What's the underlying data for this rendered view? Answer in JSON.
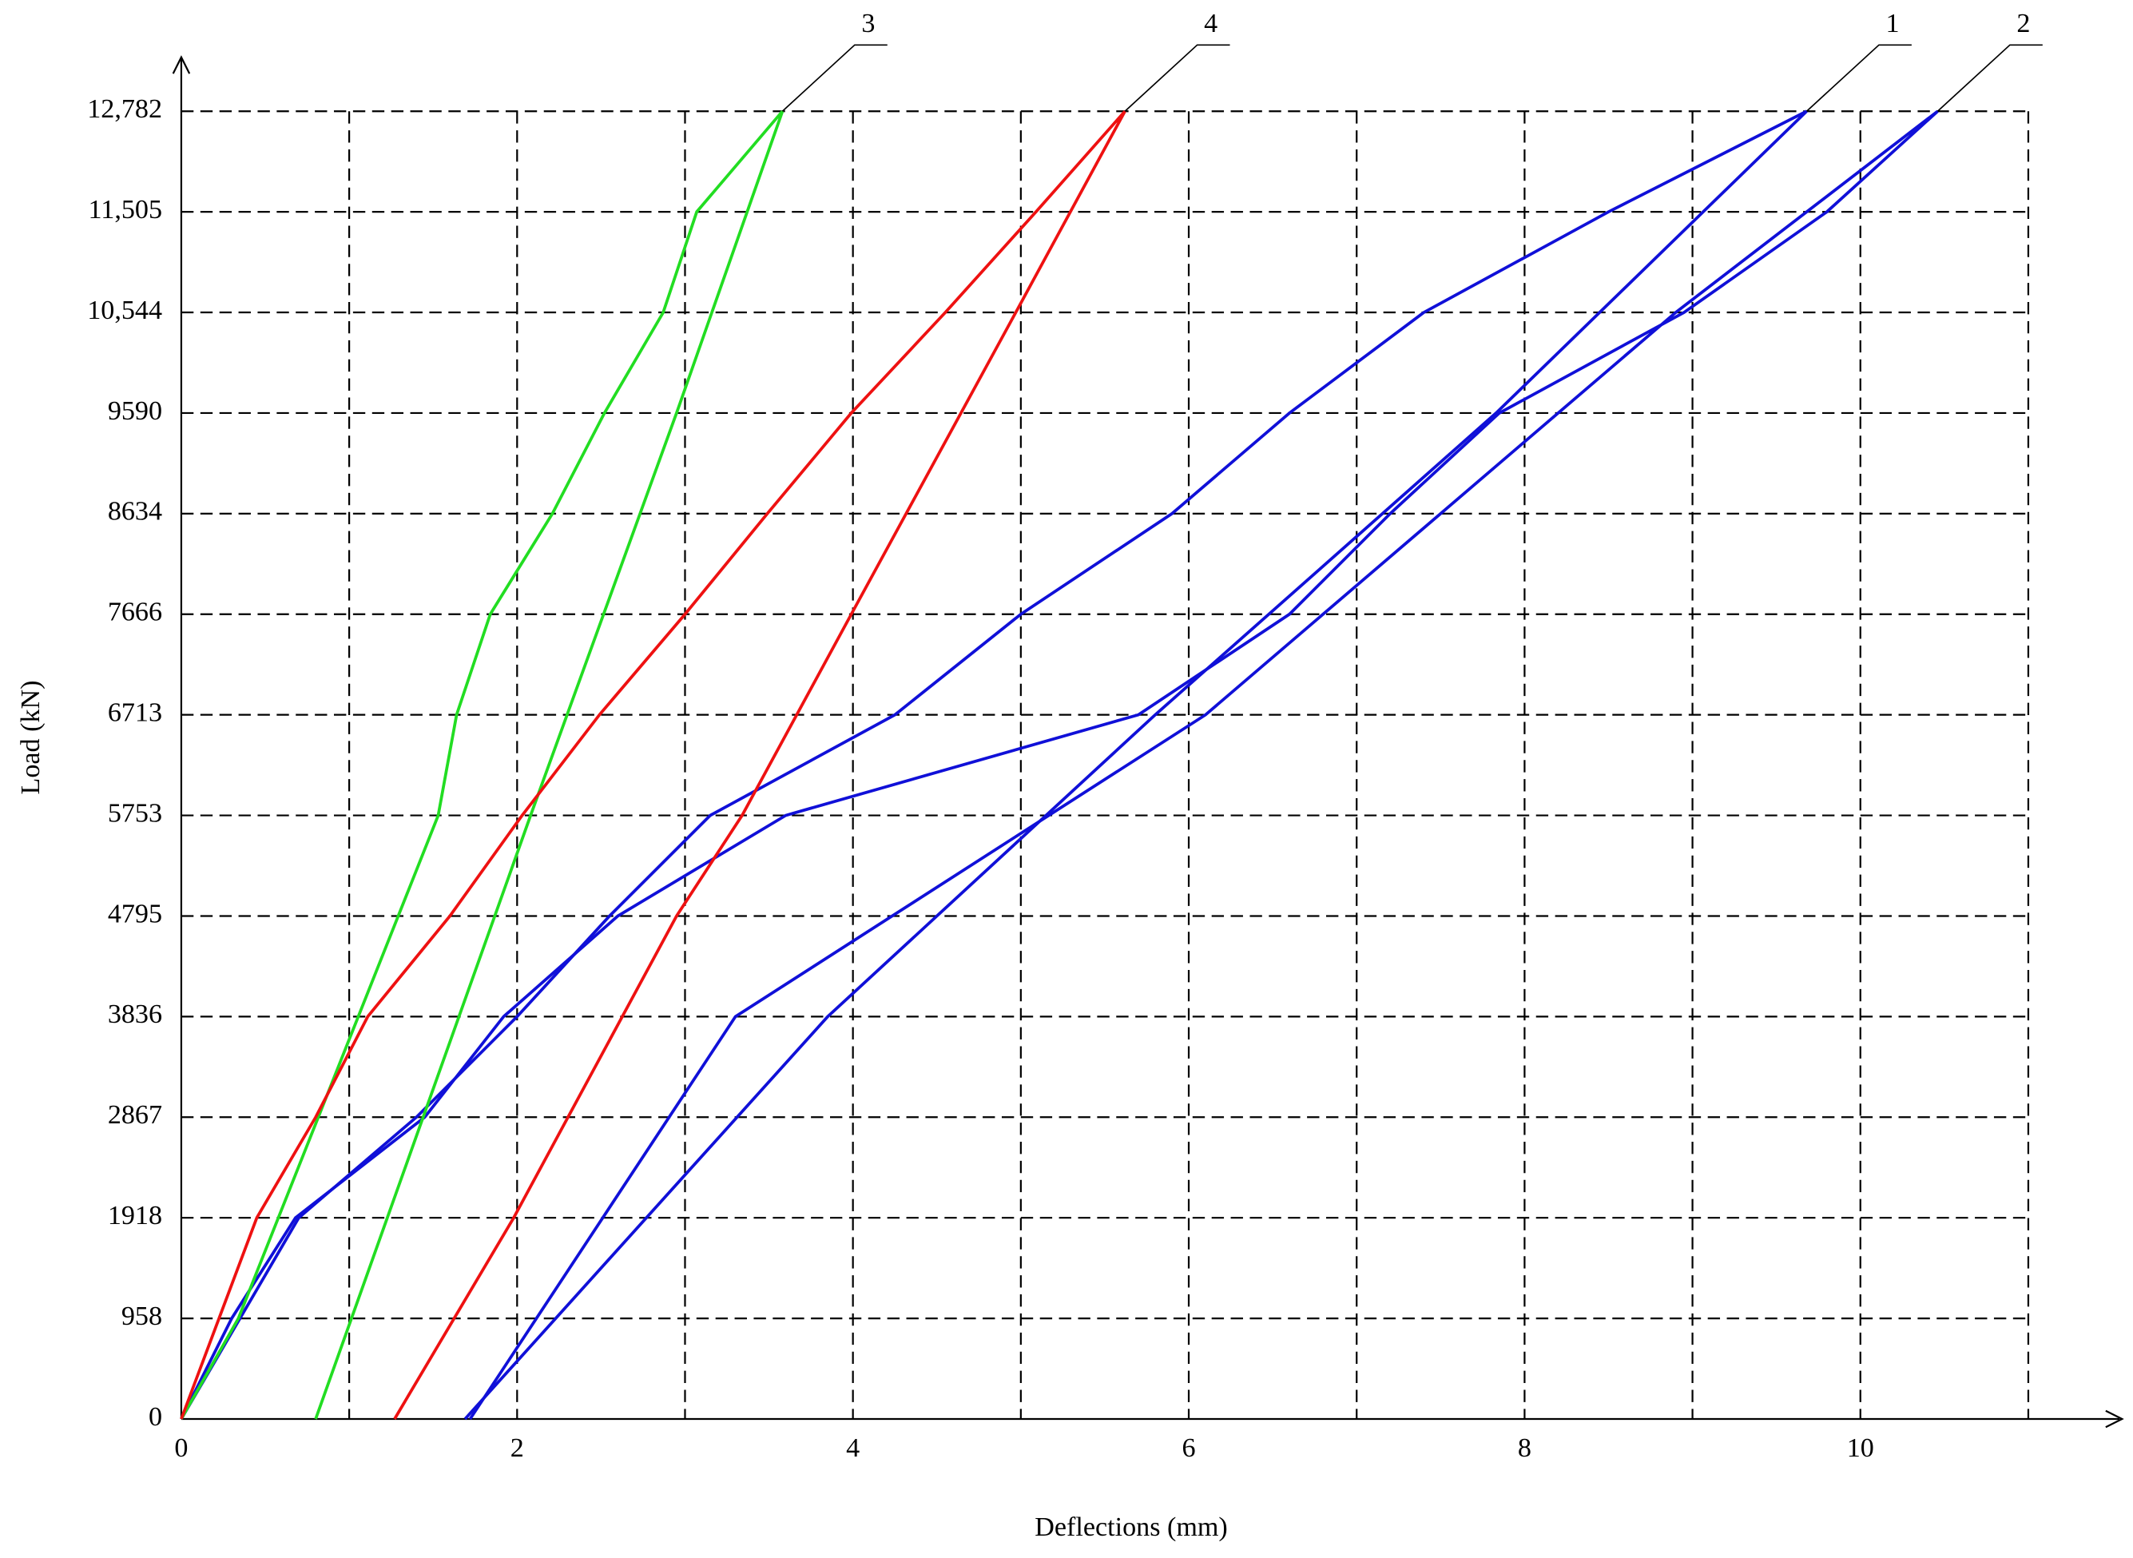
{
  "chart_data": {
    "type": "line",
    "x_label": "Deflections (mm)",
    "y_label": "Load (kN)",
    "xlim": [
      0,
      11.5
    ],
    "xticks": [
      0,
      2,
      4,
      6,
      8,
      10
    ],
    "xgrid": [
      1,
      2,
      3,
      4,
      5,
      6,
      7,
      8,
      9,
      10,
      11
    ],
    "ylim": [
      0,
      12782
    ],
    "yticks": [
      0,
      958,
      1918,
      2867,
      3836,
      4795,
      5753,
      6713,
      7666,
      8634,
      9590,
      {
        "value": 10544,
        "label": "10,544"
      },
      {
        "value": 11505,
        "label": "11,505"
      },
      {
        "value": 12782,
        "label": "12,782"
      }
    ],
    "grid": true,
    "series": [
      {
        "name": "1",
        "color": "#1010d8",
        "x": [
          0,
          0.35,
          0.7,
          1.4,
          2.0,
          2.55,
          3.15,
          4.25,
          5.0,
          5.9,
          6.6,
          7.4,
          8.5,
          9.68,
          7.83,
          5.8,
          3.85,
          1.69
        ],
        "values": [
          0,
          958,
          1918,
          2867,
          3836,
          4795,
          5753,
          6713,
          7666,
          8634,
          9590,
          10544,
          11505,
          12782,
          9590,
          6713,
          3836,
          0
        ]
      },
      {
        "name": "2",
        "color": "#1010d8",
        "x": [
          0,
          0.3,
          0.68,
          1.45,
          1.92,
          2.6,
          3.6,
          5.7,
          6.6,
          7.2,
          7.85,
          8.95,
          9.8,
          10.46,
          8.9,
          6.1,
          3.3,
          1.72
        ],
        "values": [
          0,
          958,
          1918,
          2867,
          3836,
          4795,
          5753,
          6713,
          7666,
          8634,
          9590,
          10544,
          11505,
          12782,
          10544,
          6713,
          3836,
          0
        ]
      },
      {
        "name": "3",
        "color": "#22dd22",
        "x": [
          0,
          0.34,
          1.53,
          1.64,
          1.84,
          2.21,
          2.52,
          2.87,
          3.07,
          3.58,
          2.95,
          2.08,
          0.8
        ],
        "values": [
          0,
          958,
          5753,
          6713,
          7666,
          8634,
          9590,
          10544,
          11505,
          12782,
          9590,
          5753,
          0
        ]
      },
      {
        "name": "4",
        "color": "#ee1111",
        "x": [
          0,
          0.45,
          0.8,
          1.11,
          1.6,
          2.03,
          2.49,
          3.0,
          3.49,
          3.99,
          4.55,
          5.09,
          5.62,
          4.97,
          3.99,
          3.34,
          2.95,
          1.98,
          1.27
        ],
        "values": [
          0,
          1918,
          2867,
          3836,
          4795,
          5753,
          6713,
          7666,
          8634,
          9590,
          10544,
          11505,
          12782,
          10544,
          7666,
          5753,
          4795,
          1918,
          0
        ]
      }
    ]
  }
}
